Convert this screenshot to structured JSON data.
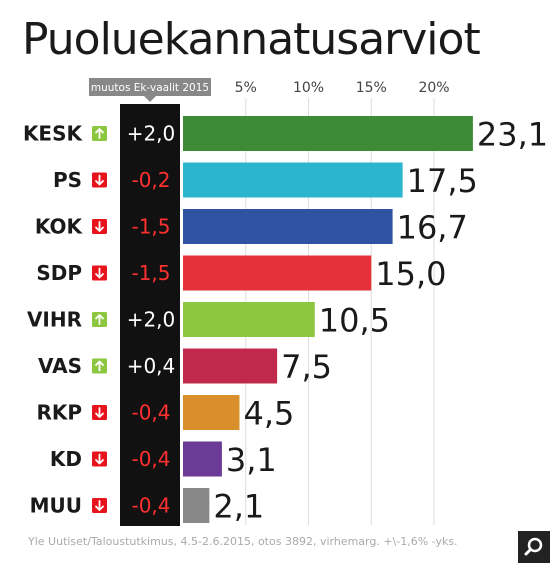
{
  "title": "Puoluekannatusarviot",
  "change_header": "muutos Ek-vaalit 2015",
  "source": "Yle Uutiset/Taloustutkimus, 4.5-2.6.2015, otos 3892, virhemarg. +\\-1,6% -yks.",
  "icons": {
    "up": "up-arrow-icon",
    "down": "down-arrow-icon",
    "zoom": "magnifier-icon"
  },
  "colors": {
    "up": "#8dc63f",
    "down": "#e8141b",
    "change_column": "#111111",
    "grid": "#dddddd"
  },
  "chart_data": {
    "type": "bar",
    "orientation": "horizontal",
    "title": "Puoluekannatusarviot",
    "categories": [
      "KESK",
      "PS",
      "KOK",
      "SDP",
      "VIHR",
      "VAS",
      "RKP",
      "KD",
      "MUU"
    ],
    "values": [
      23.1,
      17.5,
      16.7,
      15.0,
      10.5,
      7.5,
      4.5,
      3.1,
      2.1
    ],
    "value_labels": [
      "23,1",
      "17,5",
      "16,7",
      "15,0",
      "10,5",
      "7,5",
      "4,5",
      "3,1",
      "2,1"
    ],
    "changes": [
      "+2,0",
      "-0,2",
      "-1,5",
      "-1,5",
      "+2,0",
      "+0,4",
      "-0,4",
      "-0,4",
      "-0,4"
    ],
    "directions": [
      "up",
      "down",
      "down",
      "down",
      "up",
      "up",
      "down",
      "down",
      "down"
    ],
    "bar_colors": [
      "#3d8b37",
      "#2cb5cf",
      "#2f53a0",
      "#e6303a",
      "#8dc63f",
      "#c0294c",
      "#d98f2b",
      "#6b3b97",
      "#888888"
    ],
    "xticks": [
      5,
      10,
      15,
      20
    ],
    "xtick_labels": [
      "5%",
      "10%",
      "15%",
      "20%"
    ],
    "xlim": [
      0,
      23.1
    ],
    "xlabel": "",
    "ylabel": "",
    "grid": true,
    "legend": "none"
  }
}
